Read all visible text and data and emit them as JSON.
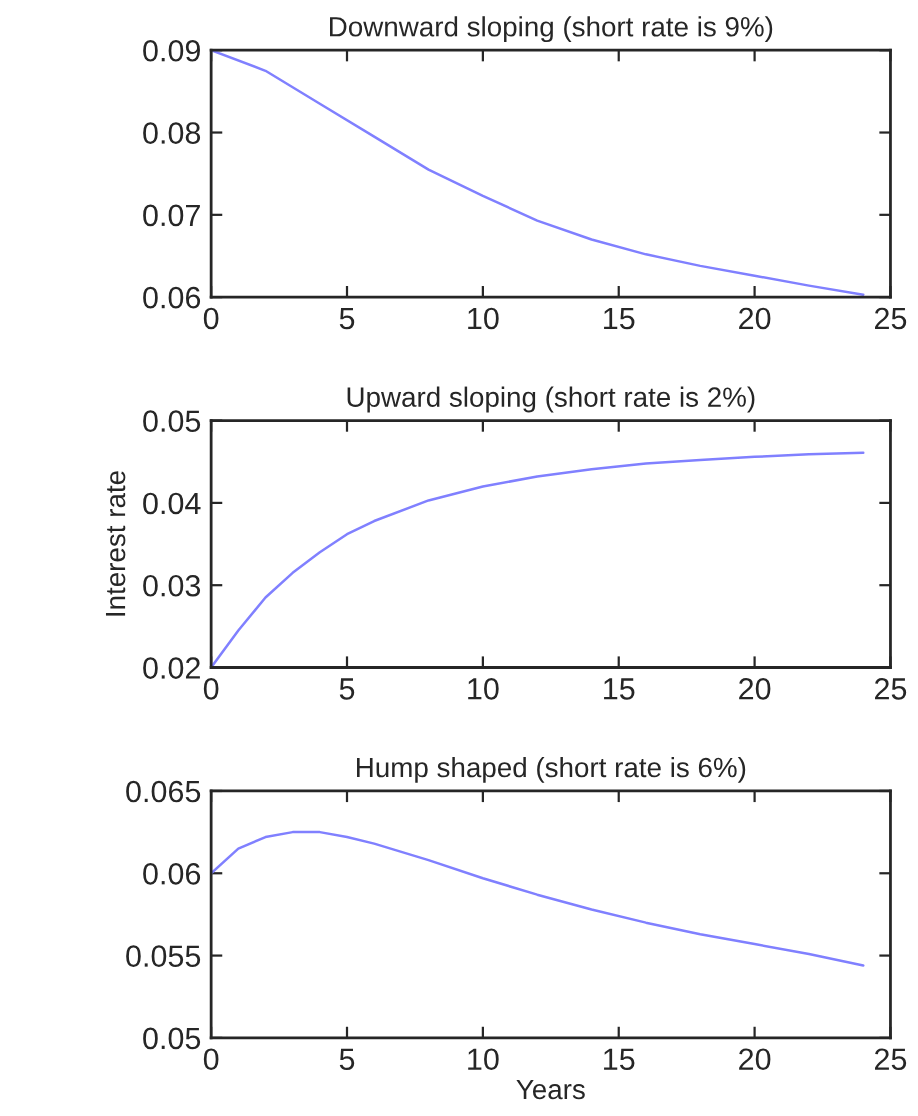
{
  "chart_data": [
    {
      "type": "line",
      "title": "Downward sloping (short rate is 9%)",
      "xlim": [
        0,
        25
      ],
      "xticks": [
        0,
        5,
        10,
        15,
        20,
        25
      ],
      "ylim": [
        0.06,
        0.09
      ],
      "yticks": [
        0.06,
        0.07,
        0.08,
        0.09
      ],
      "series": [
        {
          "color": "#8080ff",
          "x": [
            0,
            2,
            4,
            6,
            8,
            10,
            12,
            14,
            16,
            18,
            20,
            22,
            24
          ],
          "values": [
            0.09,
            0.0875,
            0.0835,
            0.0795,
            0.0755,
            0.0723,
            0.0693,
            0.067,
            0.0652,
            0.0638,
            0.0626,
            0.0614,
            0.0603
          ]
        }
      ]
    },
    {
      "type": "line",
      "title": "Upward sloping (short rate is 2%)",
      "ylabel": "Interest rate",
      "xlim": [
        0,
        25
      ],
      "xticks": [
        0,
        5,
        10,
        15,
        20,
        25
      ],
      "ylim": [
        0.02,
        0.05
      ],
      "yticks": [
        0.02,
        0.03,
        0.04,
        0.05
      ],
      "series": [
        {
          "color": "#8080ff",
          "x": [
            0,
            1,
            2,
            3,
            4,
            5,
            6,
            8,
            10,
            12,
            14,
            16,
            18,
            20,
            22,
            24
          ],
          "values": [
            0.02,
            0.0245,
            0.0285,
            0.0315,
            0.034,
            0.0362,
            0.0378,
            0.0403,
            0.042,
            0.0432,
            0.0441,
            0.0448,
            0.0452,
            0.0456,
            0.0459,
            0.0461
          ]
        }
      ]
    },
    {
      "type": "line",
      "title": "Hump shaped (short rate is 6%)",
      "xlabel": "Years",
      "xlim": [
        0,
        25
      ],
      "xticks": [
        0,
        5,
        10,
        15,
        20,
        25
      ],
      "ylim": [
        0.05,
        0.065
      ],
      "yticks": [
        0.05,
        0.055,
        0.06,
        0.065
      ],
      "series": [
        {
          "color": "#8080ff",
          "x": [
            0,
            1,
            2,
            3,
            4,
            5,
            6,
            8,
            10,
            12,
            14,
            16,
            18,
            20,
            22,
            24
          ],
          "values": [
            0.06,
            0.0615,
            0.0622,
            0.0625,
            0.0625,
            0.0622,
            0.0618,
            0.0608,
            0.0597,
            0.0587,
            0.0578,
            0.057,
            0.0563,
            0.0557,
            0.0551,
            0.0544
          ]
        }
      ]
    }
  ]
}
